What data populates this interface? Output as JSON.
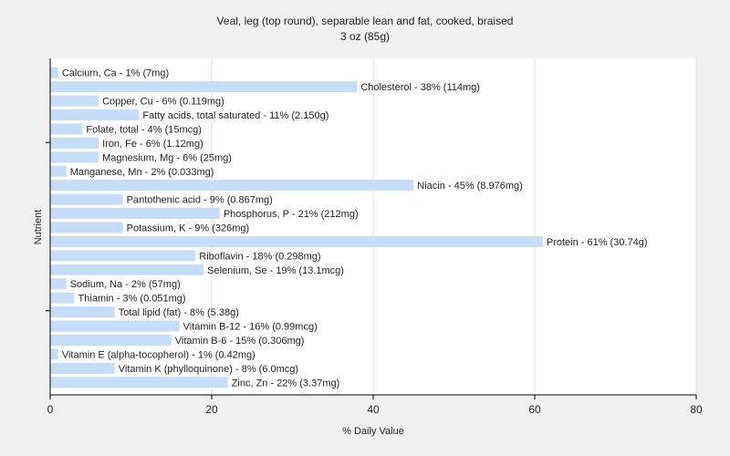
{
  "chart_data": {
    "type": "bar",
    "orientation": "horizontal",
    "title": "Veal, leg (top round), separable lean and fat, cooked, braised",
    "subtitle": "3 oz (85g)",
    "xlabel": "% Daily Value",
    "ylabel": "Nutrient",
    "xlim": [
      0,
      80
    ],
    "xticks": [
      0,
      20,
      40,
      60,
      80
    ],
    "grid": true,
    "bar_color": "#c6dcf7",
    "categories": [
      "Calcium, Ca",
      "Cholesterol",
      "Copper, Cu",
      "Fatty acids, total saturated",
      "Folate, total",
      "Iron, Fe",
      "Magnesium, Mg",
      "Manganese, Mn",
      "Niacin",
      "Pantothenic acid",
      "Phosphorus, P",
      "Potassium, K",
      "Protein",
      "Riboflavin",
      "Selenium, Se",
      "Sodium, Na",
      "Thiamin",
      "Total lipid (fat)",
      "Vitamin B-12",
      "Vitamin B-6",
      "Vitamin E (alpha-tocopherol)",
      "Vitamin K (phylloquinone)",
      "Zinc, Zn"
    ],
    "values": [
      1,
      38,
      6,
      11,
      4,
      6,
      6,
      2,
      45,
      9,
      21,
      9,
      61,
      18,
      19,
      2,
      3,
      8,
      16,
      15,
      1,
      8,
      22
    ],
    "labels": [
      "Calcium, Ca - 1% (7mg)",
      "Cholesterol - 38% (114mg)",
      "Copper, Cu - 6% (0.119mg)",
      "Fatty acids, total saturated - 11% (2.150g)",
      "Folate, total - 4% (15mcg)",
      "Iron, Fe - 6% (1.12mg)",
      "Magnesium, Mg - 6% (25mg)",
      "Manganese, Mn - 2% (0.033mg)",
      "Niacin - 45% (8.976mg)",
      "Pantothenic acid - 9% (0.867mg)",
      "Phosphorus, P - 21% (212mg)",
      "Potassium, K - 9% (326mg)",
      "Protein - 61% (30.74g)",
      "Riboflavin - 18% (0.298mg)",
      "Selenium, Se - 19% (13.1mcg)",
      "Sodium, Na - 2% (57mg)",
      "Thiamin - 3% (0.051mg)",
      "Total lipid (fat) - 8% (5.38g)",
      "Vitamin B-12 - 16% (0.99mcg)",
      "Vitamin B-6 - 15% (0.306mg)",
      "Vitamin E (alpha-tocopherol) - 1% (0.42mg)",
      "Vitamin K (phylloquinone) - 8% (6.0mcg)",
      "Zinc, Zn - 22% (3.37mg)"
    ]
  }
}
